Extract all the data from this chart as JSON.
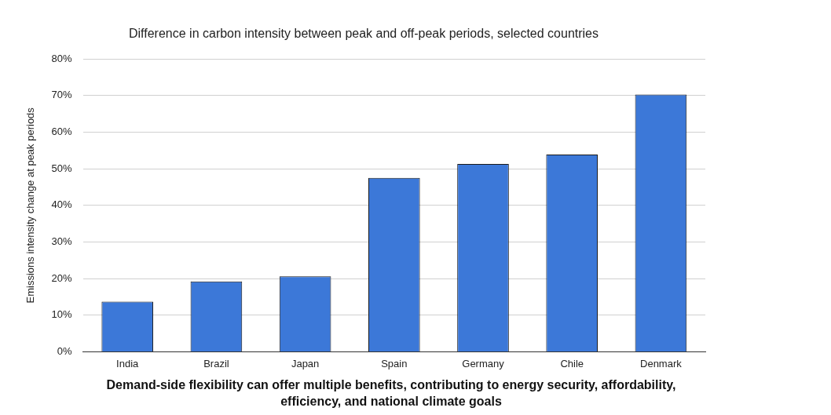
{
  "chart_data": {
    "type": "bar",
    "title": "Difference in carbon intensity between peak and off-peak periods, selected countries",
    "ylabel": "Emissions intensity change at peak periods",
    "categories": [
      "India",
      "Brazil",
      "Japan",
      "Spain",
      "Germany",
      "Chile",
      "Denmark"
    ],
    "values": [
      13.7,
      19.2,
      20.6,
      47.5,
      51.3,
      53.9,
      70.3
    ],
    "color": "#3c78d8",
    "ylim": [
      0,
      80
    ],
    "yticks": [
      {
        "value": 0,
        "label": "0%"
      },
      {
        "value": 10,
        "label": "10%"
      },
      {
        "value": 20,
        "label": "20%"
      },
      {
        "value": 30,
        "label": "30%"
      },
      {
        "value": 40,
        "label": "40%"
      },
      {
        "value": 50,
        "label": "50%"
      },
      {
        "value": 60,
        "label": "60%"
      },
      {
        "value": 70,
        "label": "70%"
      },
      {
        "value": 80,
        "label": "80%"
      }
    ],
    "grid": "y",
    "annotations": [
      "Demand-side flexibility can offer multiple benefits, contributing to energy security, affordability, efficiency, and national climate goals"
    ]
  }
}
